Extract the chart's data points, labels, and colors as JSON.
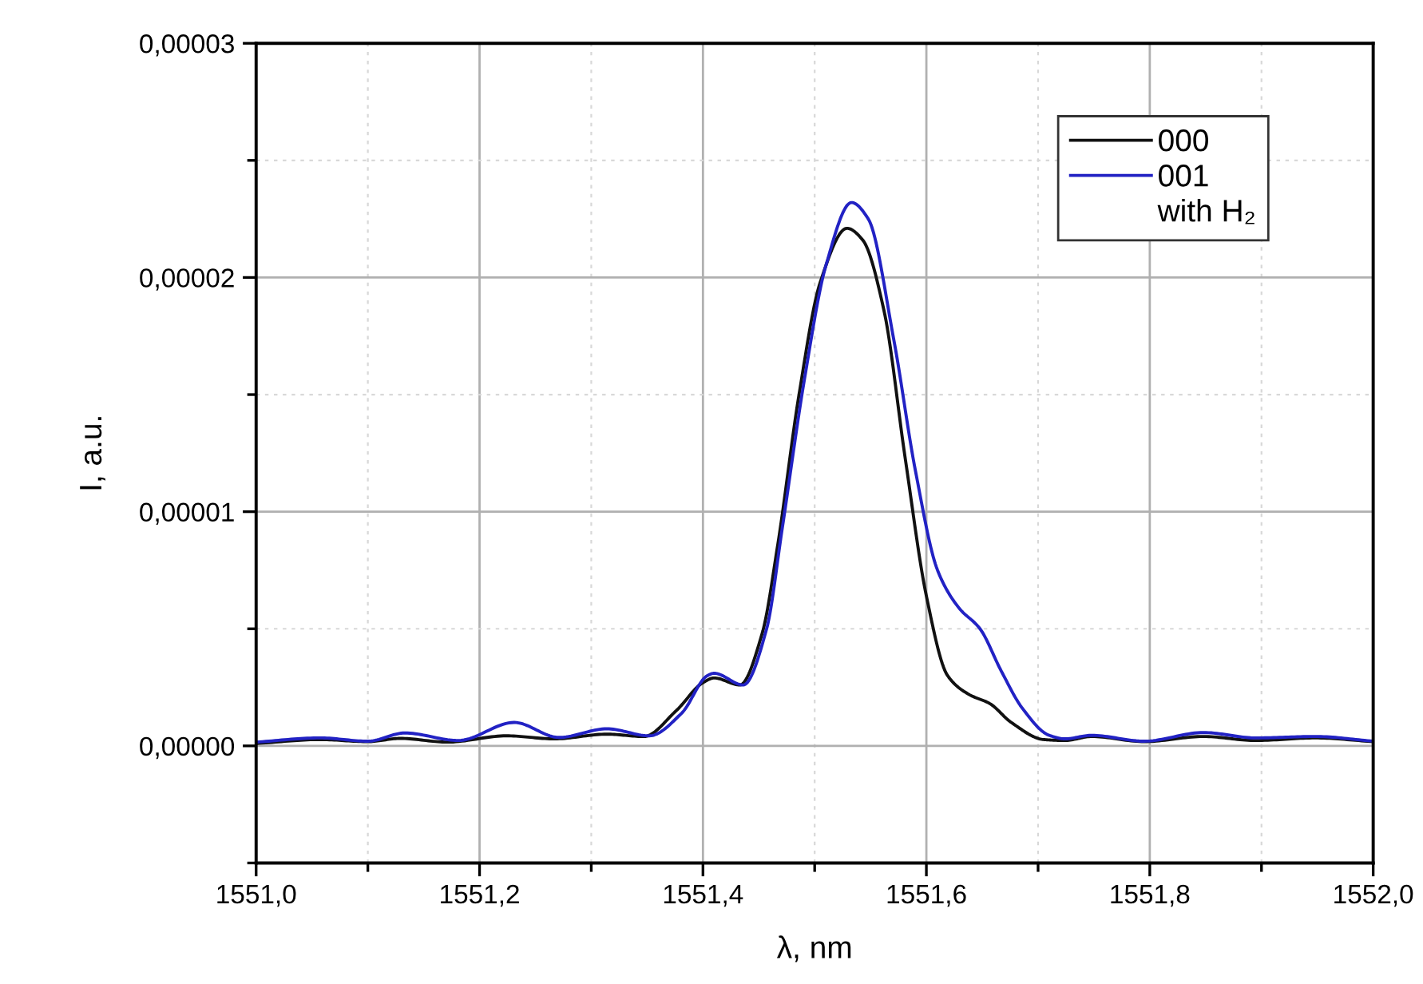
{
  "chart_data": {
    "type": "line",
    "xlabel": "λ, nm",
    "ylabel": "I, a.u.",
    "xlim": [
      1551.0,
      1552.0
    ],
    "ylim": [
      -5e-06,
      3e-05
    ],
    "xticks": [
      {
        "value": 1551.0,
        "label": "1551,0"
      },
      {
        "value": 1551.1,
        "label": null
      },
      {
        "value": 1551.2,
        "label": "1551,2"
      },
      {
        "value": 1551.3,
        "label": null
      },
      {
        "value": 1551.4,
        "label": "1551,4"
      },
      {
        "value": 1551.5,
        "label": null
      },
      {
        "value": 1551.6,
        "label": "1551,6"
      },
      {
        "value": 1551.7,
        "label": null
      },
      {
        "value": 1551.8,
        "label": "1551,8"
      },
      {
        "value": 1551.9,
        "label": null
      },
      {
        "value": 1552.0,
        "label": "1552,0"
      }
    ],
    "yticks": [
      {
        "value": -5e-06,
        "label": null
      },
      {
        "value": 0,
        "label": "0,00000"
      },
      {
        "value": 5e-06,
        "label": null
      },
      {
        "value": 1e-05,
        "label": "0,00001"
      },
      {
        "value": 1.5e-05,
        "label": null
      },
      {
        "value": 2e-05,
        "label": "0,00002"
      },
      {
        "value": 2.5e-05,
        "label": null
      },
      {
        "value": 3e-05,
        "label": "0,00003"
      }
    ],
    "grid": true,
    "legend": "top right",
    "legend_title": "with H₂",
    "series": [
      {
        "name": "000",
        "color": "#111111",
        "x": [
          1551.0,
          1551.057,
          1551.1,
          1551.129,
          1551.171,
          1551.224,
          1551.267,
          1551.314,
          1551.347,
          1551.376,
          1551.4,
          1551.41,
          1551.433,
          1551.453,
          1551.467,
          1551.486,
          1551.505,
          1551.529,
          1551.543,
          1551.562,
          1551.581,
          1551.6,
          1551.619,
          1551.638,
          1551.657,
          1551.676,
          1551.705,
          1551.724,
          1551.748,
          1551.795,
          1551.848,
          1551.895,
          1551.948,
          1552.0
        ],
        "values": [
          1e-07,
          2.7e-07,
          1.8e-07,
          3.2e-07,
          1.6e-07,
          4.3e-07,
          3e-07,
          5e-07,
          4e-07,
          1.5e-06,
          2.7e-06,
          2.9e-06,
          2.6e-06,
          4.8e-06,
          8.6e-06,
          1.5e-05,
          1.98e-05,
          2.21e-05,
          2.16e-05,
          1.86e-05,
          1.23e-05,
          6.4e-06,
          3e-06,
          2.2e-06,
          1.8e-06,
          1e-06,
          2.7e-07,
          2.3e-07,
          4e-07,
          1.8e-07,
          4e-07,
          2.3e-07,
          3.4e-07,
          1.8e-07
        ]
      },
      {
        "name": "001",
        "color": "#2222c4",
        "x": [
          1551.0,
          1551.057,
          1551.1,
          1551.133,
          1551.181,
          1551.231,
          1551.271,
          1551.314,
          1551.352,
          1551.381,
          1551.404,
          1551.41,
          1551.436,
          1551.457,
          1551.471,
          1551.491,
          1551.51,
          1551.533,
          1551.548,
          1551.571,
          1551.59,
          1551.61,
          1551.629,
          1551.648,
          1551.667,
          1551.686,
          1551.71,
          1551.724,
          1551.748,
          1551.795,
          1551.848,
          1551.895,
          1551.948,
          1552.0
        ],
        "values": [
          1.6e-07,
          3.4e-07,
          2e-07,
          5.5e-07,
          2.3e-07,
          1e-06,
          3.6e-07,
          7.3e-07,
          4.3e-07,
          1.4e-06,
          3e-06,
          3.1e-06,
          2.6e-06,
          5e-06,
          9.3e-06,
          1.57e-05,
          2.05e-05,
          2.32e-05,
          2.25e-05,
          1.73e-05,
          1.18e-05,
          7.5e-06,
          5.9e-06,
          5e-06,
          3.2e-06,
          1.6e-06,
          4.5e-07,
          3e-07,
          4.5e-07,
          2e-07,
          5.7e-07,
          3.4e-07,
          4e-07,
          2e-07
        ]
      }
    ]
  }
}
